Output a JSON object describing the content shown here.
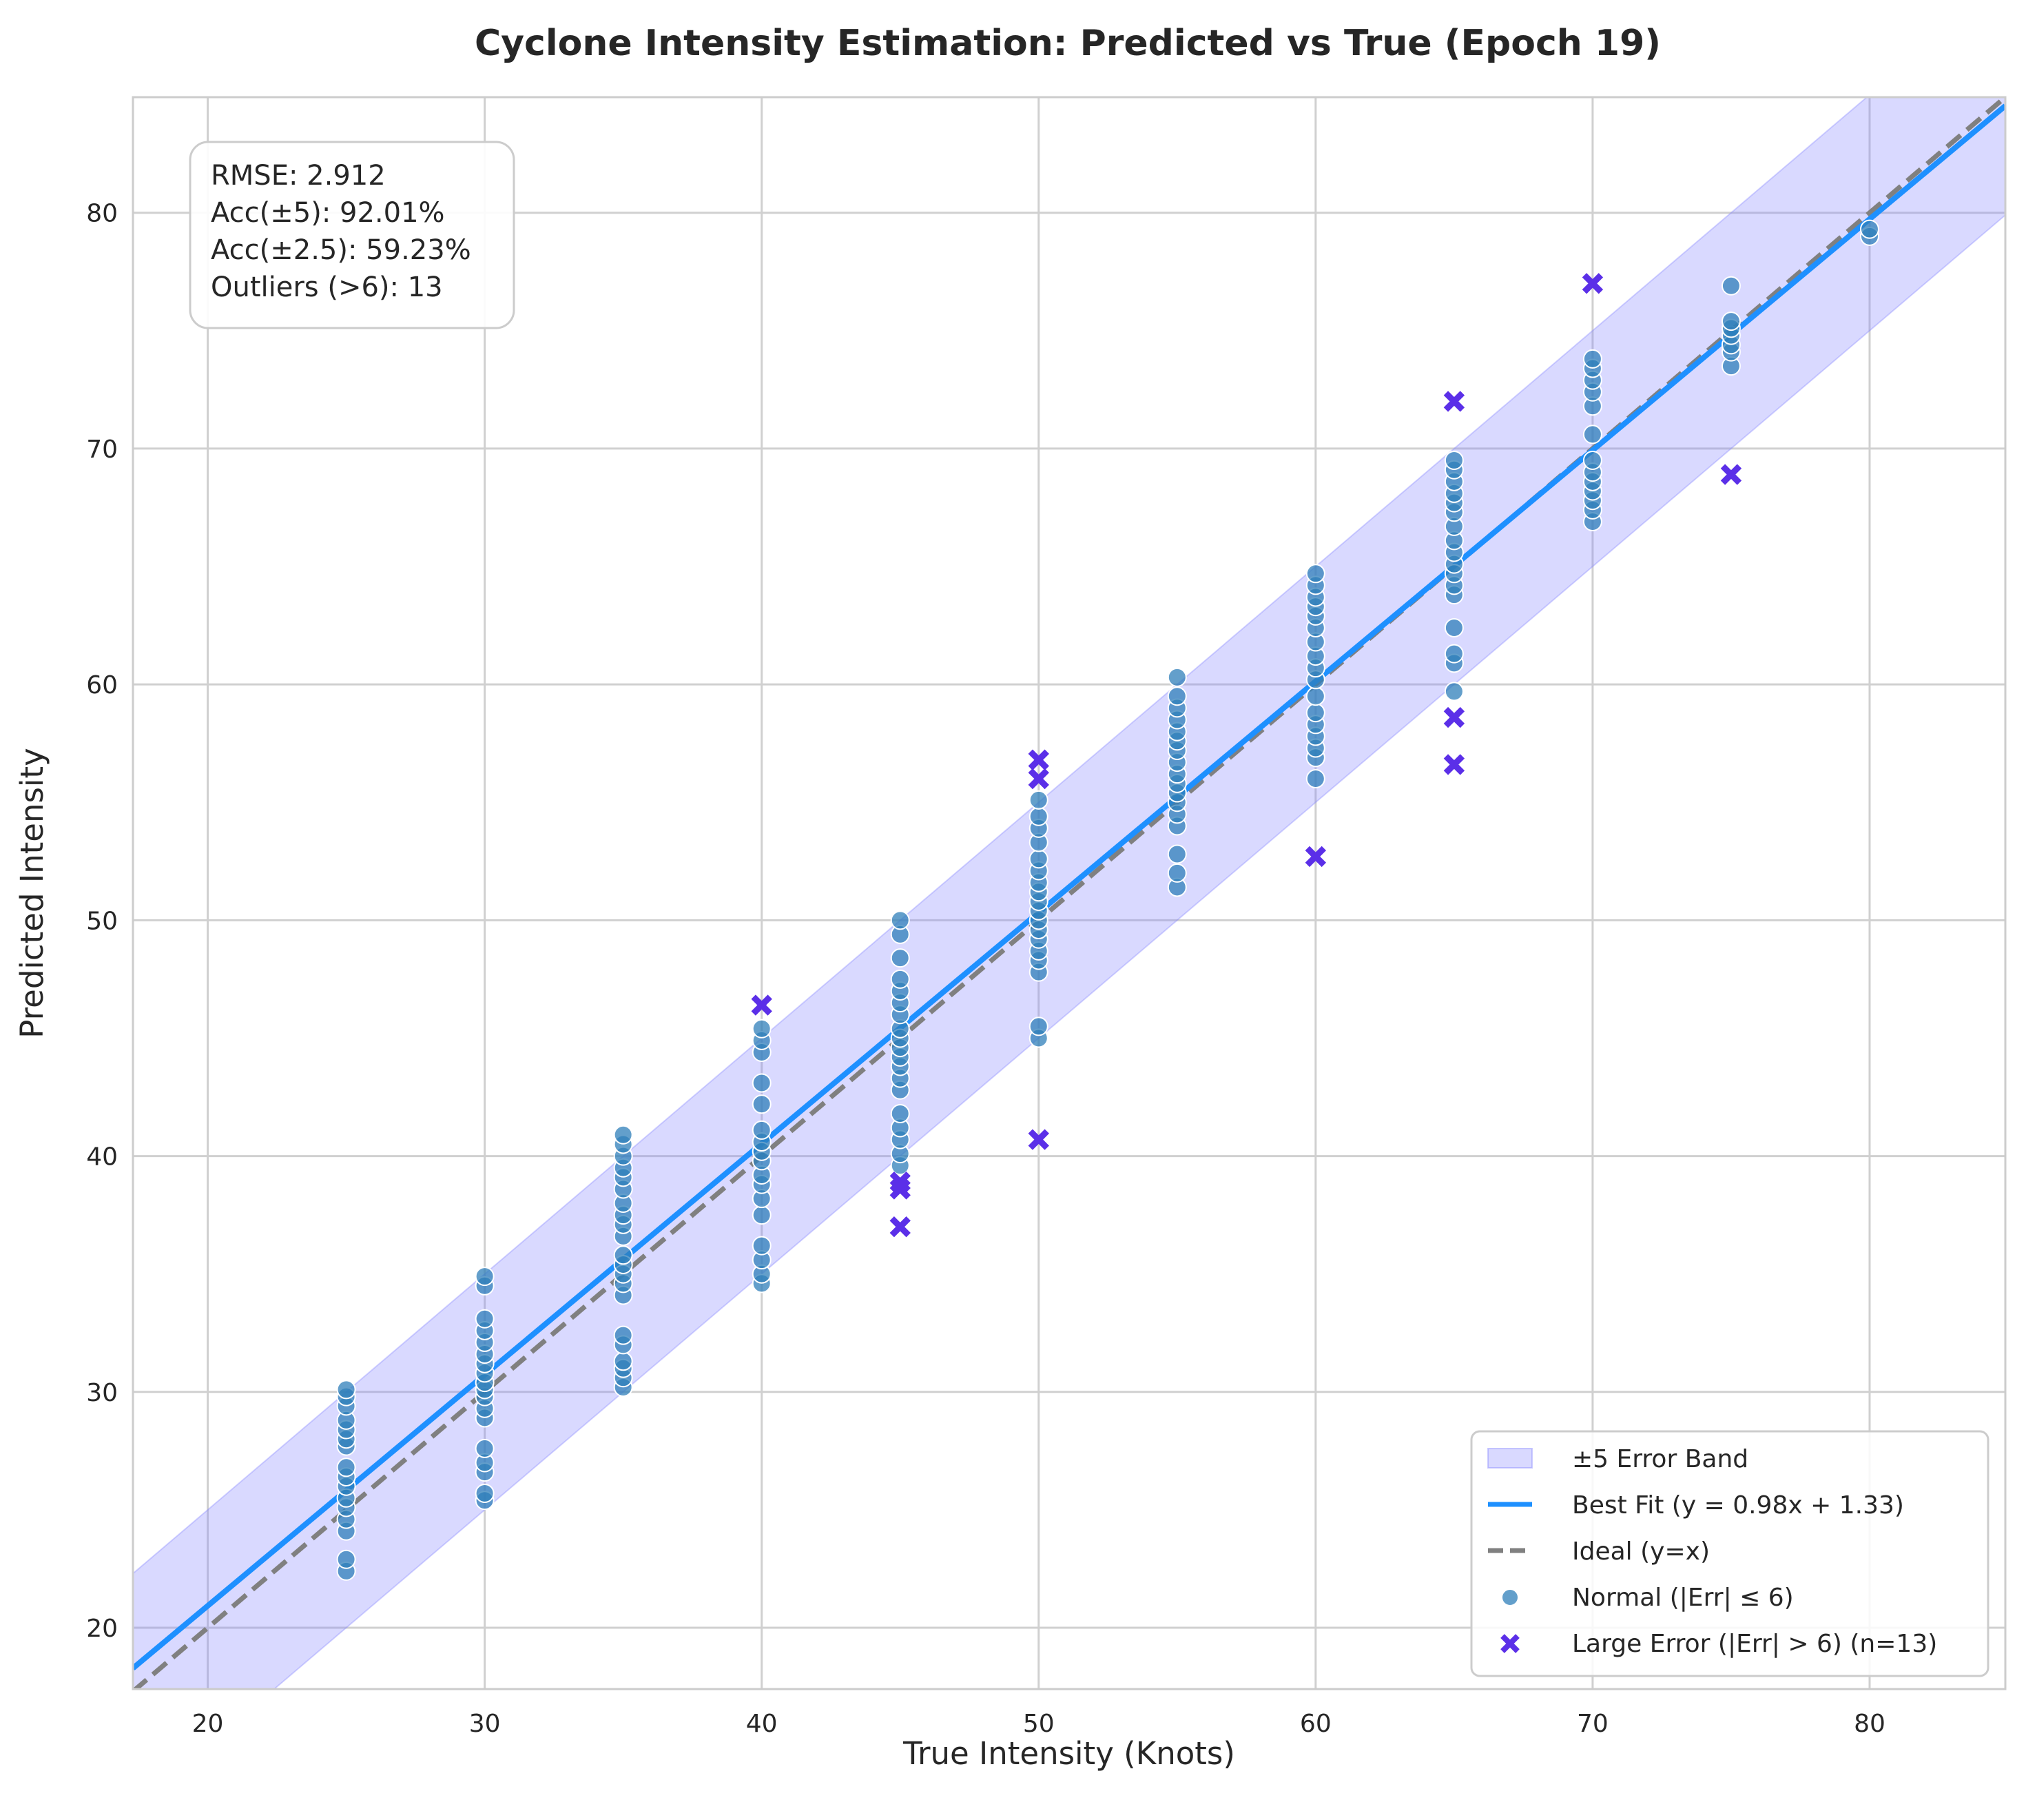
{
  "chart_data": {
    "type": "scatter",
    "title": "Cyclone Intensity Estimation: Predicted vs True (Epoch 19)",
    "xlabel": "True Intensity (Knots)",
    "ylabel": "Predicted Intensity",
    "xlim": [
      17.3,
      84.9
    ],
    "ylim": [
      17.4,
      84.9
    ],
    "xticks": [
      20,
      30,
      40,
      50,
      60,
      70,
      80
    ],
    "yticks": [
      20,
      30,
      40,
      50,
      60,
      70,
      80
    ],
    "grid": true,
    "legend_position": "bottom-right",
    "colors": {
      "band": "#8080ff",
      "best_fit": "#1e90ff",
      "ideal": "#808080",
      "normal": "#2f7fba",
      "large_error": "#5b2fe8",
      "grid": "#d0d0d0",
      "spine": "#cccccc"
    },
    "stats": [
      "RMSE: 2.912",
      "Acc(±5): 92.01%",
      "Acc(±2.5): 59.23%",
      "Outliers (>6): 13"
    ],
    "error_band": {
      "label": "±5 Error Band",
      "width": 5
    },
    "best_fit": {
      "label": "Best Fit (y = 0.98x + 1.33)",
      "slope": 0.98,
      "intercept": 1.33
    },
    "ideal": {
      "label": "Ideal (y=x)"
    },
    "series": [
      {
        "name": "Normal (|Err| ≤ 6)",
        "marker": "circle",
        "points": [
          [
            25,
            22.4
          ],
          [
            25,
            22.9
          ],
          [
            25,
            24.1
          ],
          [
            25,
            24.6
          ],
          [
            25,
            25.1
          ],
          [
            25,
            25.5
          ],
          [
            25,
            26.0
          ],
          [
            25,
            26.4
          ],
          [
            25,
            26.8
          ],
          [
            25,
            27.7
          ],
          [
            25,
            28.0
          ],
          [
            25,
            28.4
          ],
          [
            25,
            28.8
          ],
          [
            25,
            29.4
          ],
          [
            25,
            29.8
          ],
          [
            25,
            30.1
          ],
          [
            30,
            25.4
          ],
          [
            30,
            25.7
          ],
          [
            30,
            26.6
          ],
          [
            30,
            27.0
          ],
          [
            30,
            27.6
          ],
          [
            30,
            28.9
          ],
          [
            30,
            29.3
          ],
          [
            30,
            29.8
          ],
          [
            30,
            30.1
          ],
          [
            30,
            30.4
          ],
          [
            30,
            30.8
          ],
          [
            30,
            31.2
          ],
          [
            30,
            31.6
          ],
          [
            30,
            32.1
          ],
          [
            30,
            32.6
          ],
          [
            30,
            33.1
          ],
          [
            30,
            34.5
          ],
          [
            30,
            34.9
          ],
          [
            35,
            30.2
          ],
          [
            35,
            30.6
          ],
          [
            35,
            31.0
          ],
          [
            35,
            31.3
          ],
          [
            35,
            32.0
          ],
          [
            35,
            32.4
          ],
          [
            35,
            34.1
          ],
          [
            35,
            34.6
          ],
          [
            35,
            35.0
          ],
          [
            35,
            35.4
          ],
          [
            35,
            35.8
          ],
          [
            35,
            36.6
          ],
          [
            35,
            37.1
          ],
          [
            35,
            37.5
          ],
          [
            35,
            38.0
          ],
          [
            35,
            38.6
          ],
          [
            35,
            39.1
          ],
          [
            35,
            39.5
          ],
          [
            35,
            40.0
          ],
          [
            35,
            40.5
          ],
          [
            35,
            40.9
          ],
          [
            40,
            34.6
          ],
          [
            40,
            35.0
          ],
          [
            40,
            35.6
          ],
          [
            40,
            36.2
          ],
          [
            40,
            37.5
          ],
          [
            40,
            38.2
          ],
          [
            40,
            38.8
          ],
          [
            40,
            39.2
          ],
          [
            40,
            39.8
          ],
          [
            40,
            40.2
          ],
          [
            40,
            40.6
          ],
          [
            40,
            41.1
          ],
          [
            40,
            42.2
          ],
          [
            40,
            43.1
          ],
          [
            40,
            44.4
          ],
          [
            40,
            44.9
          ],
          [
            40,
            45.4
          ],
          [
            45,
            39.6
          ],
          [
            45,
            40.1
          ],
          [
            45,
            40.7
          ],
          [
            45,
            41.2
          ],
          [
            45,
            41.8
          ],
          [
            45,
            42.8
          ],
          [
            45,
            43.3
          ],
          [
            45,
            43.8
          ],
          [
            45,
            44.2
          ],
          [
            45,
            44.6
          ],
          [
            45,
            45.0
          ],
          [
            45,
            45.4
          ],
          [
            45,
            46.0
          ],
          [
            45,
            46.5
          ],
          [
            45,
            47.0
          ],
          [
            45,
            47.5
          ],
          [
            45,
            48.4
          ],
          [
            45,
            49.4
          ],
          [
            45,
            50.0
          ],
          [
            50,
            45.0
          ],
          [
            50,
            45.5
          ],
          [
            50,
            47.8
          ],
          [
            50,
            48.3
          ],
          [
            50,
            48.7
          ],
          [
            50,
            49.2
          ],
          [
            50,
            49.6
          ],
          [
            50,
            50.0
          ],
          [
            50,
            50.4
          ],
          [
            50,
            50.8
          ],
          [
            50,
            51.2
          ],
          [
            50,
            51.6
          ],
          [
            50,
            52.1
          ],
          [
            50,
            52.6
          ],
          [
            50,
            53.3
          ],
          [
            50,
            53.9
          ],
          [
            50,
            54.4
          ],
          [
            50,
            55.1
          ],
          [
            55,
            51.4
          ],
          [
            55,
            52.0
          ],
          [
            55,
            52.8
          ],
          [
            55,
            54.0
          ],
          [
            55,
            54.5
          ],
          [
            55,
            55.0
          ],
          [
            55,
            55.4
          ],
          [
            55,
            55.8
          ],
          [
            55,
            56.2
          ],
          [
            55,
            56.7
          ],
          [
            55,
            57.2
          ],
          [
            55,
            57.6
          ],
          [
            55,
            58.0
          ],
          [
            55,
            58.5
          ],
          [
            55,
            59.0
          ],
          [
            55,
            59.5
          ],
          [
            55,
            60.3
          ],
          [
            60,
            56.0
          ],
          [
            60,
            56.9
          ],
          [
            60,
            57.3
          ],
          [
            60,
            57.8
          ],
          [
            60,
            58.3
          ],
          [
            60,
            58.8
          ],
          [
            60,
            59.5
          ],
          [
            60,
            60.2
          ],
          [
            60,
            60.7
          ],
          [
            60,
            61.2
          ],
          [
            60,
            61.8
          ],
          [
            60,
            62.4
          ],
          [
            60,
            62.9
          ],
          [
            60,
            63.3
          ],
          [
            60,
            63.7
          ],
          [
            60,
            64.2
          ],
          [
            60,
            64.7
          ],
          [
            65,
            59.7
          ],
          [
            65,
            60.9
          ],
          [
            65,
            61.3
          ],
          [
            65,
            62.4
          ],
          [
            65,
            63.8
          ],
          [
            65,
            64.2
          ],
          [
            65,
            64.7
          ],
          [
            65,
            65.1
          ],
          [
            65,
            65.6
          ],
          [
            65,
            66.1
          ],
          [
            65,
            66.7
          ],
          [
            65,
            67.3
          ],
          [
            65,
            67.7
          ],
          [
            65,
            68.1
          ],
          [
            65,
            68.6
          ],
          [
            65,
            69.1
          ],
          [
            65,
            69.5
          ],
          [
            70,
            66.9
          ],
          [
            70,
            67.4
          ],
          [
            70,
            67.8
          ],
          [
            70,
            68.2
          ],
          [
            70,
            68.6
          ],
          [
            70,
            69.0
          ],
          [
            70,
            69.5
          ],
          [
            70,
            70.6
          ],
          [
            70,
            71.8
          ],
          [
            70,
            72.4
          ],
          [
            70,
            72.9
          ],
          [
            70,
            73.4
          ],
          [
            70,
            73.8
          ],
          [
            75,
            73.5
          ],
          [
            75,
            74.1
          ],
          [
            75,
            74.4
          ],
          [
            75,
            74.8
          ],
          [
            75,
            75.1
          ],
          [
            75,
            75.4
          ],
          [
            75,
            76.9
          ],
          [
            80,
            79.0
          ],
          [
            80,
            79.3
          ]
        ]
      },
      {
        "name": "Large Error (|Err| > 6) (n=13)",
        "marker": "x",
        "points": [
          [
            40,
            46.4
          ],
          [
            45,
            38.6
          ],
          [
            45,
            38.9
          ],
          [
            45,
            37.0
          ],
          [
            50,
            56.8
          ],
          [
            50,
            56.0
          ],
          [
            50,
            40.7
          ],
          [
            60,
            52.7
          ],
          [
            65,
            72.0
          ],
          [
            65,
            58.6
          ],
          [
            65,
            56.6
          ],
          [
            70,
            77.0
          ],
          [
            75,
            68.9
          ]
        ]
      }
    ]
  }
}
